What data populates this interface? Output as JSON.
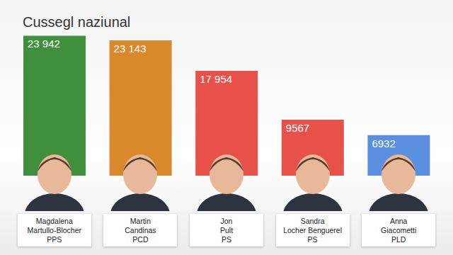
{
  "chart_data": {
    "type": "bar",
    "title": "Cussegl naziunal",
    "categories": [
      "Magdalena Martullo-Blocher",
      "Martin Candinas",
      "Jon Pult",
      "Sandra Locher Benguerel",
      "Anna Giacometti"
    ],
    "parties": [
      "PPS",
      "PCD",
      "PS",
      "PS",
      "PLD"
    ],
    "values": [
      23942,
      23143,
      17954,
      9567,
      6932
    ],
    "value_labels": [
      "23 942",
      "23 143",
      "17 954",
      "9567",
      "6932"
    ],
    "colors": [
      "#3f8f3c",
      "#d9892b",
      "#e8504a",
      "#e8504a",
      "#5b8fe0"
    ],
    "ylim": [
      0,
      24000
    ],
    "data_labels": true,
    "tick_labels": false,
    "grid": false
  }
}
